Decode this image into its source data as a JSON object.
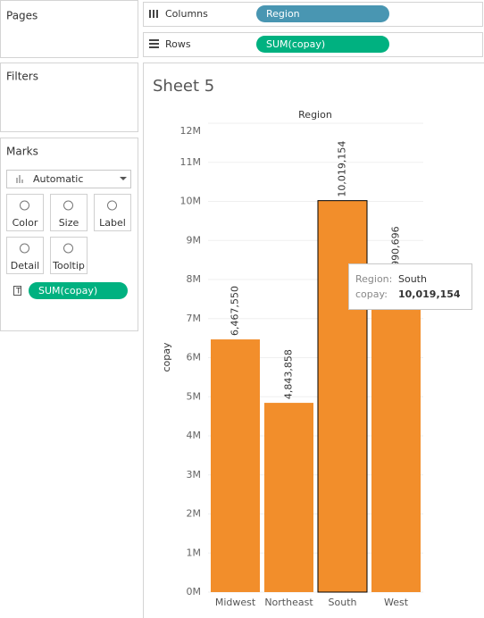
{
  "ui": {
    "pages": "Pages",
    "filters": "Filters",
    "marks": {
      "title": "Marks",
      "mark_type": "Automatic",
      "buttons": [
        "Color",
        "Size",
        "Label",
        "Detail",
        "Tooltip"
      ],
      "pill": "SUM(copay)"
    },
    "columns": {
      "label": "Columns",
      "pill": "Region"
    },
    "rows": {
      "label": "Rows",
      "pill": "SUM(copay)"
    },
    "sheet_title": "Sheet 5",
    "tooltip": {
      "field1": "Region:",
      "value1": "South",
      "field2": "copay:",
      "value2": "10,019,154"
    }
  },
  "chart_data": {
    "type": "bar",
    "x_label": "Region",
    "y_label": "copay",
    "categories": [
      "Midwest",
      "Northeast",
      "South",
      "West"
    ],
    "values": [
      6467550,
      4843858,
      10019154,
      7990696
    ],
    "value_labels": [
      "6,467,550",
      "4,843,858",
      "10,019,154",
      "7,990,696"
    ],
    "color": "#f28e2b",
    "highlight": "South",
    "ylim": [
      0,
      12000000
    ],
    "yticks": [
      {
        "value": 0,
        "label": "0M"
      },
      {
        "value": 1000000,
        "label": "1M"
      },
      {
        "value": 2000000,
        "label": "2M"
      },
      {
        "value": 3000000,
        "label": "3M"
      },
      {
        "value": 4000000,
        "label": "4M"
      },
      {
        "value": 5000000,
        "label": "5M"
      },
      {
        "value": 6000000,
        "label": "6M"
      },
      {
        "value": 7000000,
        "label": "7M"
      },
      {
        "value": 8000000,
        "label": "8M"
      },
      {
        "value": 9000000,
        "label": "9M"
      },
      {
        "value": 10000000,
        "label": "10M"
      },
      {
        "value": 11000000,
        "label": "11M"
      },
      {
        "value": 12000000,
        "label": "12M"
      }
    ],
    "grid": true
  }
}
